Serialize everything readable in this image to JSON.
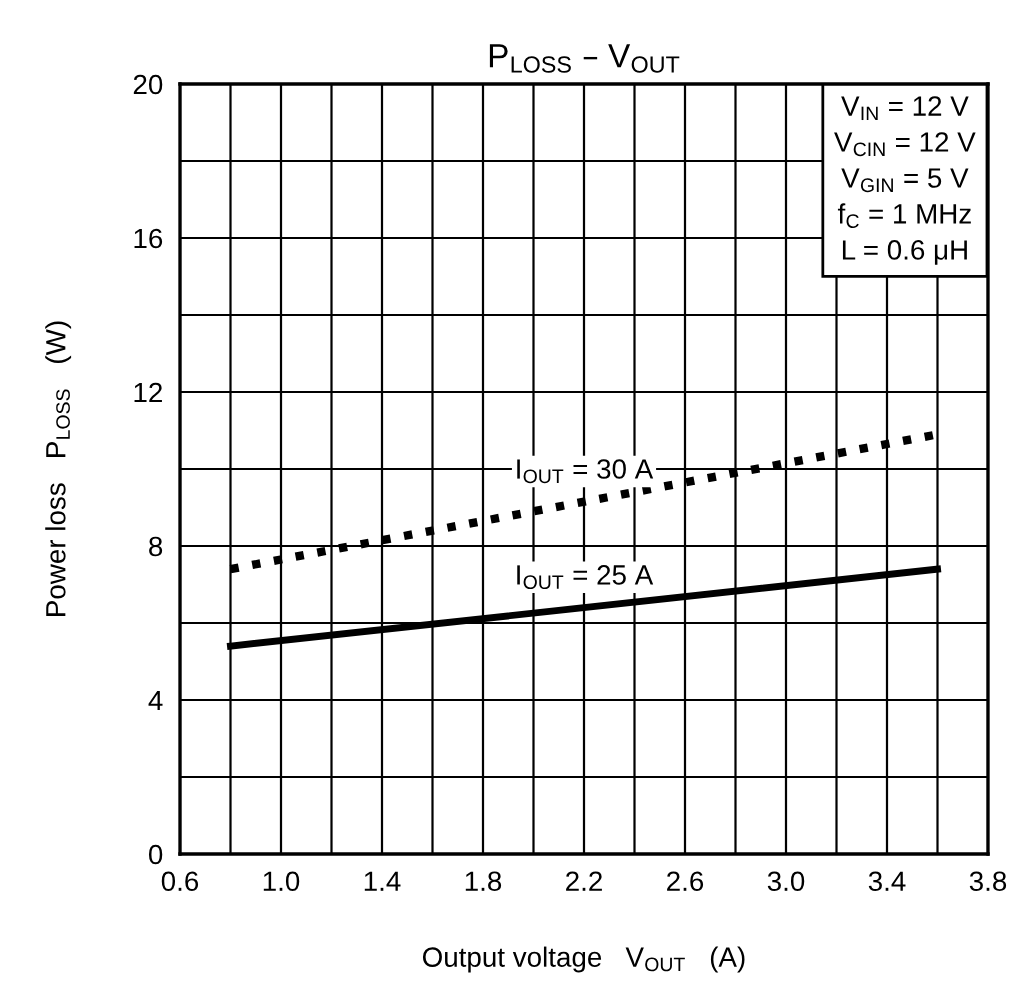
{
  "chart_data": {
    "type": "line",
    "title": "P$_{LOSS}$ – V$_{OUT}$",
    "xlabel": "Output voltage   V$_{OUT}$   (A)",
    "ylabel": "Power loss   P$_{LOSS}$   (W)",
    "x": [
      0.8,
      3.6
    ],
    "series": [
      {
        "name": "I$_{OUT}$ = 30 A",
        "color": "#000000",
        "line_style": "dotted",
        "values": [
          7.4,
          10.9
        ]
      },
      {
        "name": "I$_{OUT}$ = 25 A",
        "color": "#000000",
        "line_style": "solid",
        "values": [
          5.4,
          7.4
        ]
      }
    ],
    "annotations": [
      "V$_{IN}$ = 12 V\nV$_{CIN}$ = 12 V\nV$_{GIN}$ = 5 V\nf$_{C}$ = 1 MHz\nL = 0.6 μH"
    ],
    "xlim": [
      0.6,
      3.8
    ],
    "xticks": [
      {
        "value": 0.6,
        "label": "0.6"
      },
      {
        "value": 0.8,
        "label": null
      },
      {
        "value": 1.0,
        "label": "1.0"
      },
      {
        "value": 1.2,
        "label": null
      },
      {
        "value": 1.4,
        "label": "1.4"
      },
      {
        "value": 1.6,
        "label": null
      },
      {
        "value": 1.8,
        "label": "1.8"
      },
      {
        "value": 2.0,
        "label": null
      },
      {
        "value": 2.2,
        "label": "2.2"
      },
      {
        "value": 2.4,
        "label": null
      },
      {
        "value": 2.6,
        "label": "2.6"
      },
      {
        "value": 2.8,
        "label": null
      },
      {
        "value": 3.0,
        "label": "3.0"
      },
      {
        "value": 3.2,
        "label": null
      },
      {
        "value": 3.4,
        "label": "3.4"
      },
      {
        "value": 3.6,
        "label": null
      },
      {
        "value": 3.8,
        "label": "3.8"
      }
    ],
    "ylim": [
      0,
      20
    ],
    "yticks": [
      0,
      {
        "value": 2,
        "label": null
      },
      4,
      {
        "value": 6,
        "label": null
      },
      8,
      {
        "value": 10,
        "label": null
      },
      12,
      {
        "value": 14,
        "label": null
      },
      16,
      {
        "value": 18,
        "label": null
      },
      20
    ],
    "grid": true,
    "legend": false,
    "marker": "none"
  }
}
